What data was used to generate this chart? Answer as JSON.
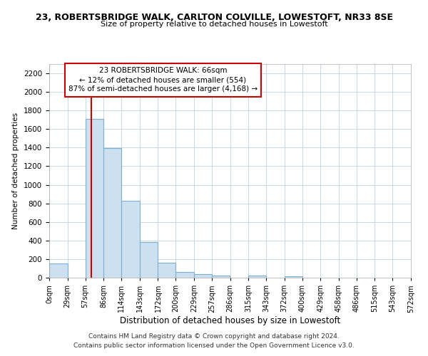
{
  "title1": "23, ROBERTSBRIDGE WALK, CARLTON COLVILLE, LOWESTOFT, NR33 8SE",
  "title2": "Size of property relative to detached houses in Lowestoft",
  "xlabel": "Distribution of detached houses by size in Lowestoft",
  "ylabel": "Number of detached properties",
  "bin_edges": [
    0,
    29,
    57,
    86,
    114,
    143,
    172,
    200,
    229,
    257,
    286,
    315,
    343,
    372,
    400,
    429,
    458,
    486,
    515,
    543,
    572
  ],
  "bin_labels": [
    "0sqm",
    "29sqm",
    "57sqm",
    "86sqm",
    "114sqm",
    "143sqm",
    "172sqm",
    "200sqm",
    "229sqm",
    "257sqm",
    "286sqm",
    "315sqm",
    "343sqm",
    "372sqm",
    "400sqm",
    "429sqm",
    "458sqm",
    "486sqm",
    "515sqm",
    "543sqm",
    "572sqm"
  ],
  "counts": [
    155,
    0,
    1710,
    1395,
    830,
    385,
    160,
    60,
    35,
    25,
    0,
    20,
    0,
    15,
    0,
    0,
    0,
    0,
    0,
    0
  ],
  "bar_color": "#cce0f0",
  "bar_edge_color": "#7ab0d4",
  "property_line_x": 66,
  "property_line_color": "#cc0000",
  "ylim": [
    0,
    2300
  ],
  "yticks": [
    0,
    200,
    400,
    600,
    800,
    1000,
    1200,
    1400,
    1600,
    1800,
    2000,
    2200
  ],
  "annotation_title": "23 ROBERTSBRIDGE WALK: 66sqm",
  "annotation_line1": "← 12% of detached houses are smaller (554)",
  "annotation_line2": "87% of semi-detached houses are larger (4,168) →",
  "annotation_box_color": "#ffffff",
  "annotation_box_edge": "#cc0000",
  "footer1": "Contains HM Land Registry data © Crown copyright and database right 2024.",
  "footer2": "Contains public sector information licensed under the Open Government Licence v3.0.",
  "background_color": "#ffffff",
  "grid_color": "#c8d8e8"
}
